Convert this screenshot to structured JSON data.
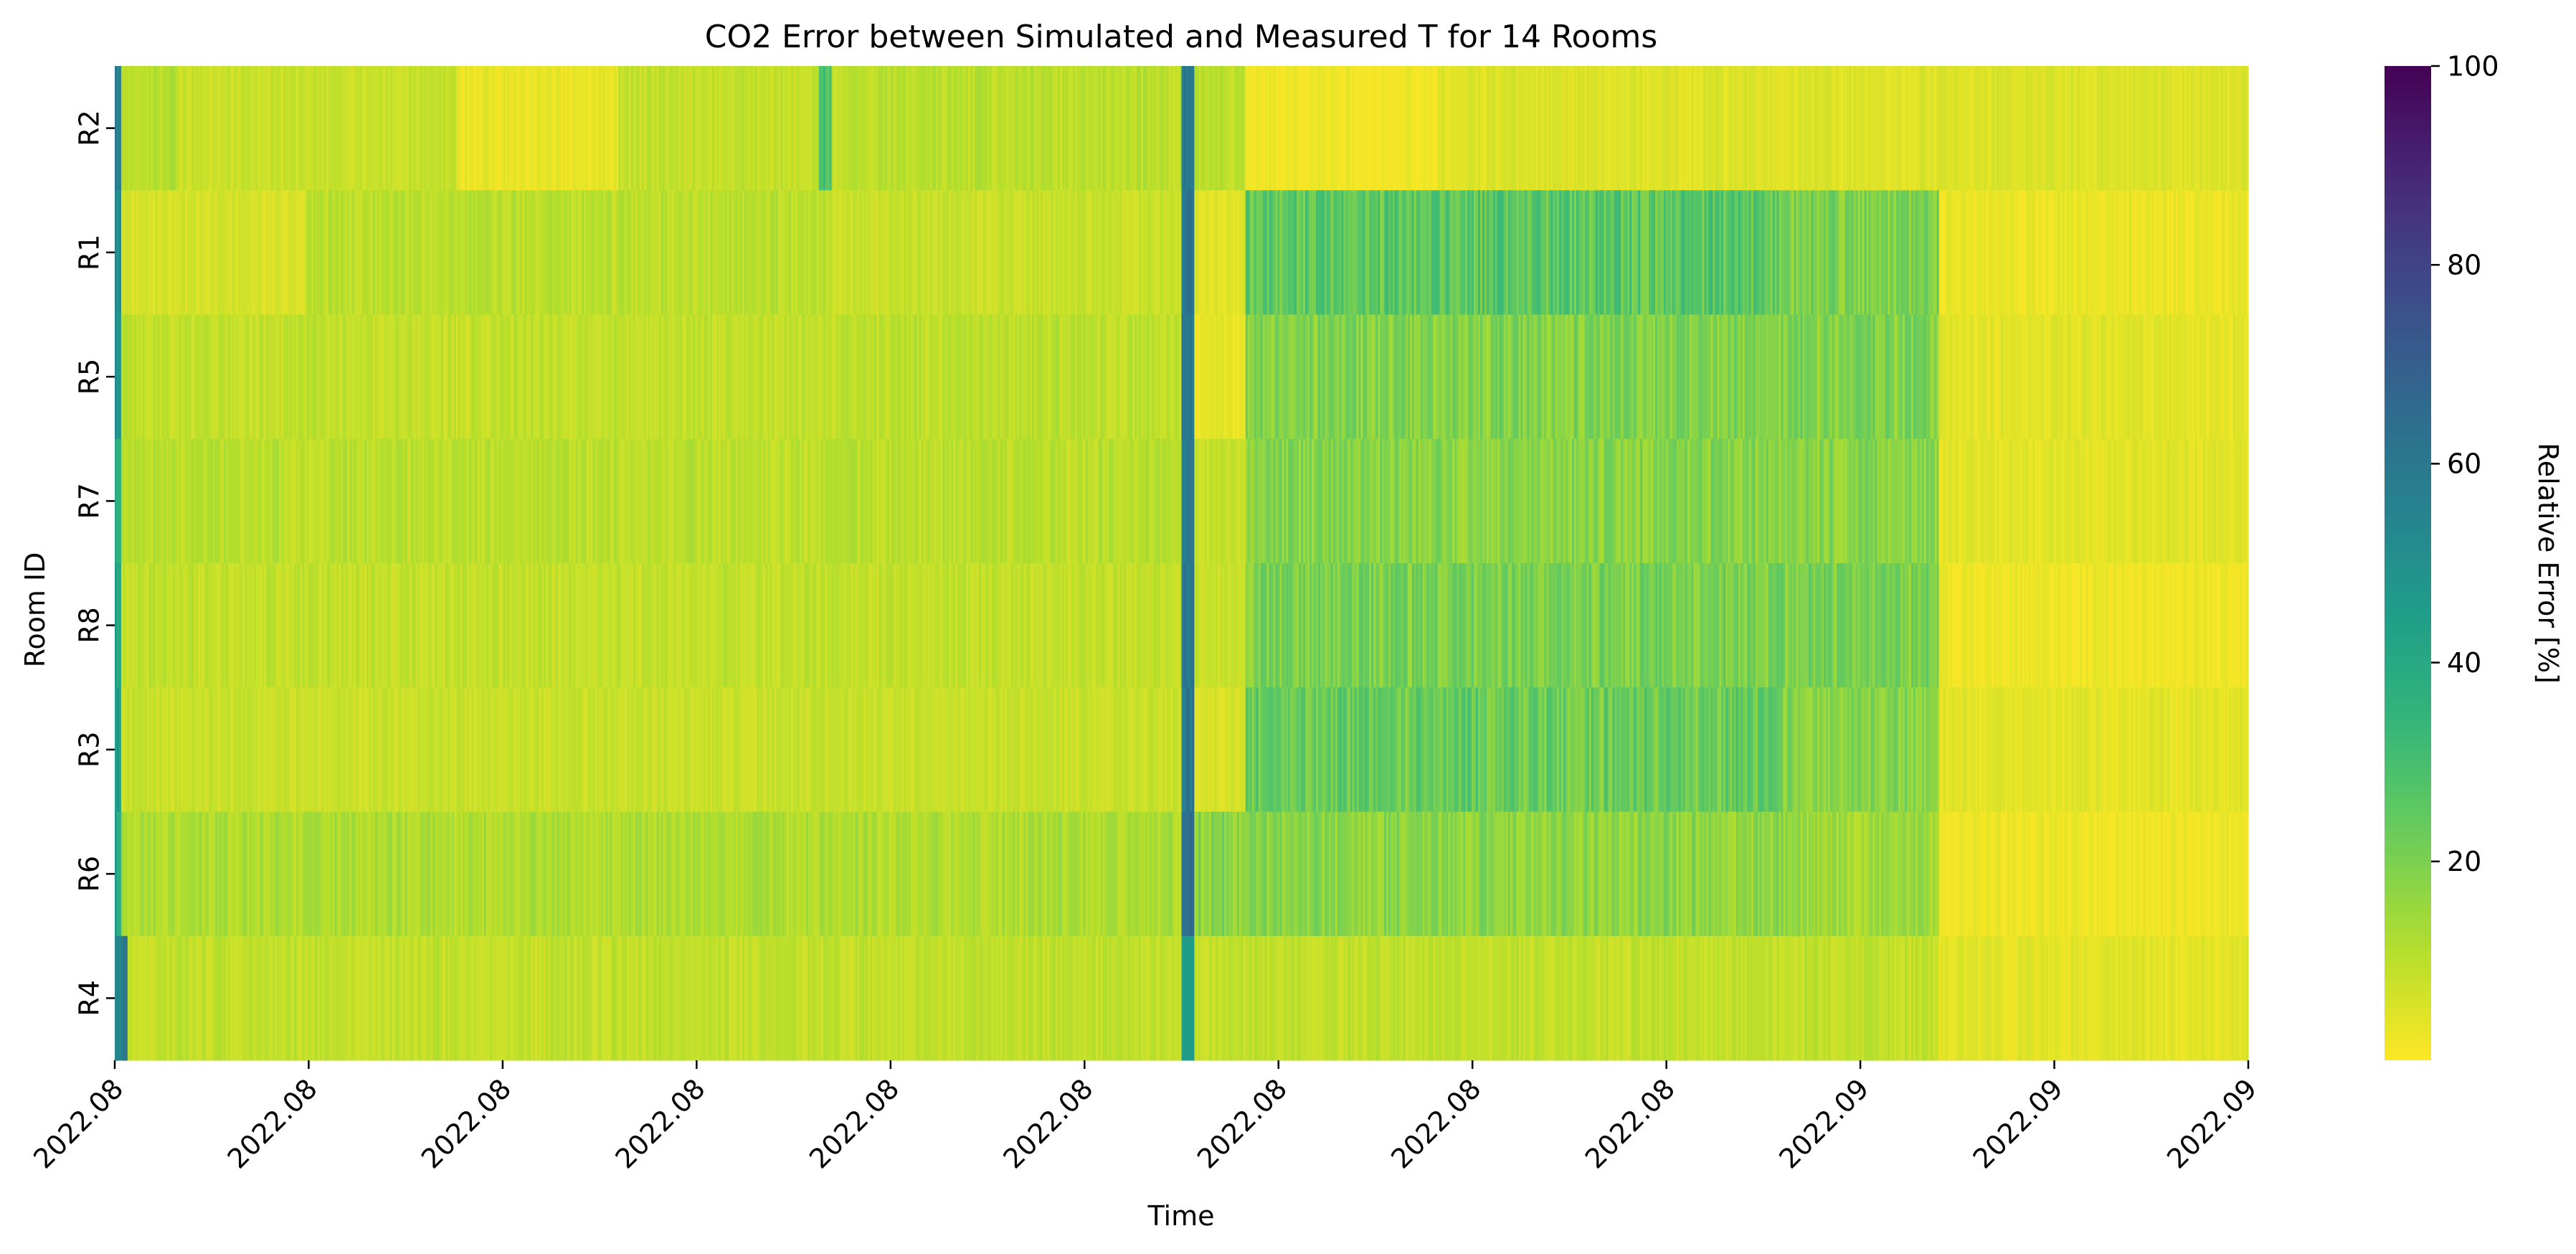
{
  "chart_data": {
    "type": "heatmap",
    "title": "CO2 Error between Simulated and Measured T for 14 Rooms",
    "xlabel": "Time",
    "ylabel": "Room ID",
    "rows": [
      "R2",
      "R1",
      "R5",
      "R7",
      "R8",
      "R3",
      "R6",
      "R4"
    ],
    "x_tick_labels": [
      "2022.08",
      "2022.08",
      "2022.08",
      "2022.08",
      "2022.08",
      "2022.08",
      "2022.08",
      "2022.08",
      "2022.08",
      "2022.09",
      "2022.09",
      "2022.09"
    ],
    "n_time_columns": 1000,
    "colorbar": {
      "label": "Relative Error [%]",
      "min": 0,
      "max": 100,
      "ticks": [
        20,
        40,
        60,
        80,
        100
      ],
      "colormap": "viridis_r"
    },
    "segments": [
      {
        "row": "R2",
        "value_pattern": [
          [
            0,
            0.002,
            55
          ],
          [
            0.002,
            0.03,
            12
          ],
          [
            0.03,
            0.16,
            8
          ],
          [
            0.16,
            0.24,
            4
          ],
          [
            0.24,
            0.33,
            9
          ],
          [
            0.33,
            0.335,
            35
          ],
          [
            0.335,
            0.33,
            12
          ],
          [
            0.335,
            0.335,
            12
          ],
          [
            0.335,
            0.5,
            10
          ],
          [
            0.33,
            0.335,
            12
          ],
          [
            0.335,
            0.335,
            12
          ],
          [
            0.5,
            0.335,
            12
          ],
          [
            0.335,
            0.34,
            12
          ]
        ]
      }
    ],
    "band_summary": [
      {
        "row": "R2",
        "bands": [
          [
            0.0,
            0.003,
            55
          ],
          [
            0.003,
            0.03,
            11
          ],
          [
            0.03,
            0.16,
            8
          ],
          [
            0.16,
            0.235,
            4
          ],
          [
            0.235,
            0.33,
            9
          ],
          [
            0.33,
            0.335,
            32
          ],
          [
            0.335,
            0.335,
            12
          ],
          [
            0.335,
            0.335,
            12
          ],
          [
            0.335,
            0.5,
            10
          ],
          [
            0.5,
            0.335,
            10
          ],
          [
            0.335,
            0.335,
            10
          ]
        ]
      }
    ]
  }
}
